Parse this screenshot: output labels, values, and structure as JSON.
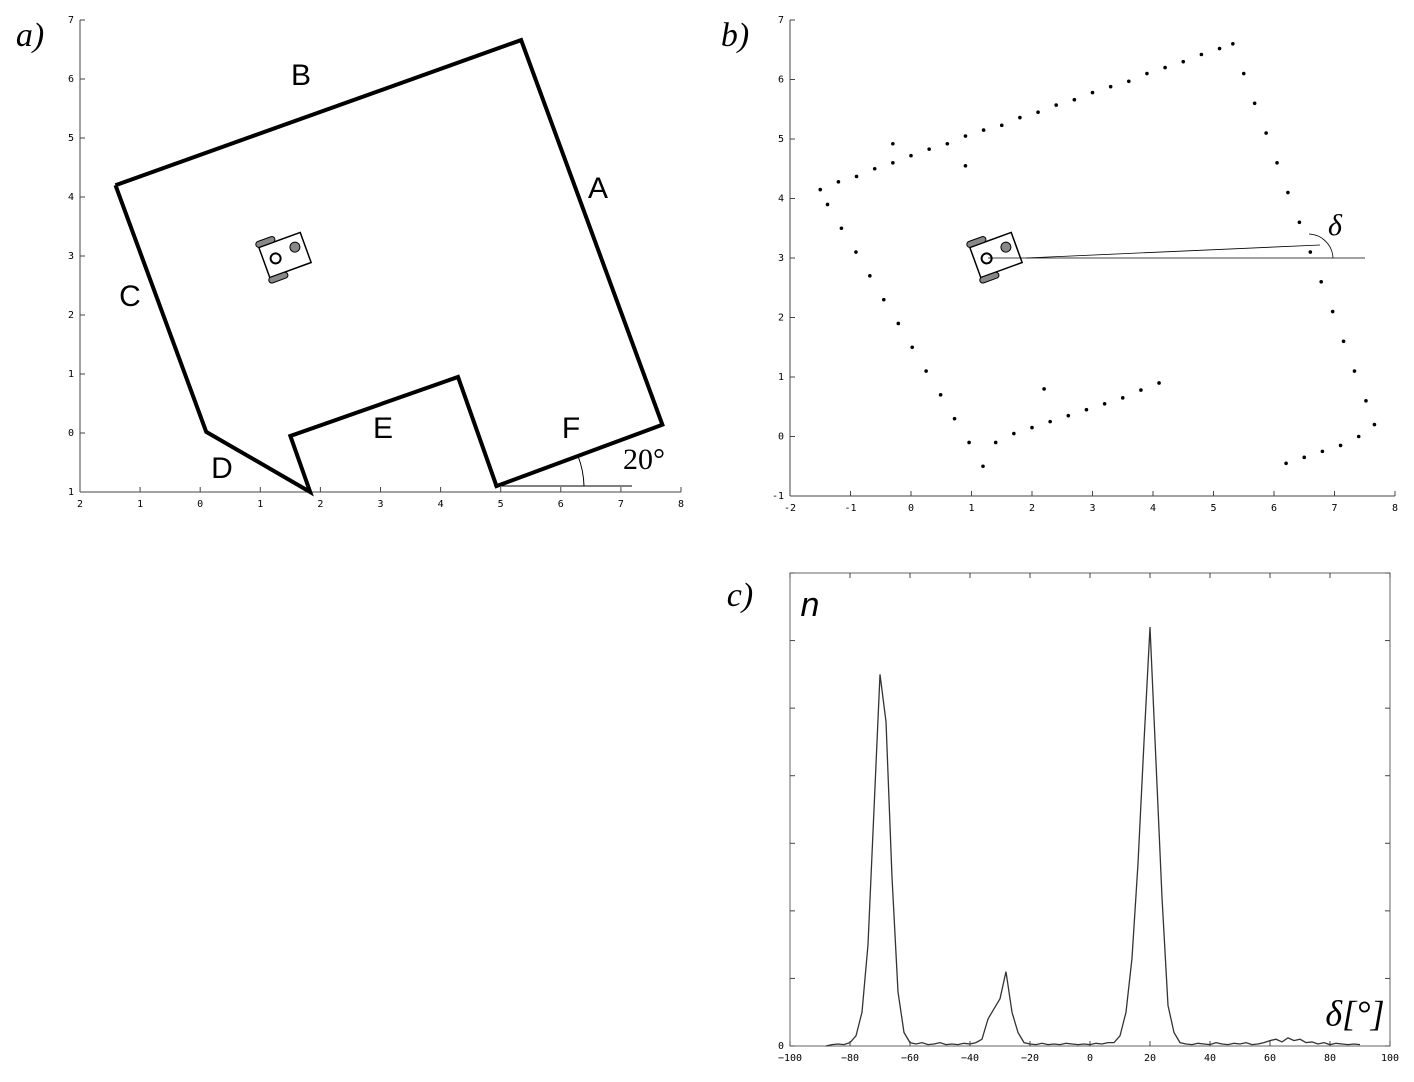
{
  "chart_data": [
    {
      "type": "line",
      "panel_label": "a)",
      "x": [
        -1.41,
        5.34,
        7.69,
        4.93,
        4.29,
        1.5,
        1.83,
        0.1,
        -1.41
      ],
      "y": [
        4.2,
        6.66,
        0.14,
        -0.9,
        0.95,
        -0.05,
        -1,
        0.02,
        4.2
      ],
      "color": "#000000",
      "xlim": [
        -2,
        8
      ],
      "ylim": [
        -1,
        7
      ],
      "xticks": [
        {
          "value": -2,
          "label": "2"
        },
        {
          "value": -1,
          "label": "1"
        },
        0,
        1,
        2,
        3,
        4,
        5,
        6,
        7,
        8
      ],
      "yticks": [
        {
          "value": -1,
          "label": "1"
        },
        0,
        1,
        2,
        3,
        4,
        5,
        6,
        7
      ],
      "annotations": [
        "A",
        "B",
        "C",
        "D",
        "E",
        "F",
        "20°"
      ]
    },
    {
      "type": "scatter",
      "panel_label": "b)",
      "x": [
        -1.5,
        -1.2,
        -0.9,
        -0.6,
        -0.3,
        0,
        0.3,
        0.6,
        0.9,
        1.2,
        1.5,
        1.8,
        2.1,
        2.4,
        2.7,
        3.0,
        3.3,
        3.6,
        3.9,
        4.2,
        4.5,
        4.8,
        5.1,
        5.32,
        5.5,
        5.68,
        5.87,
        6.05,
        6.23,
        6.42,
        6.6,
        6.78,
        6.97,
        7.15,
        7.33,
        7.52,
        7.66,
        6.2,
        6.5,
        6.8,
        7.1,
        7.4,
        -1.38,
        -1.15,
        -0.91,
        -0.68,
        -0.45,
        -0.21,
        0.02,
        0.25,
        0.49,
        0.72,
        0.96,
        1.19,
        1.4,
        1.7,
        2.0,
        2.3,
        2.6,
        2.9,
        3.2,
        3.5,
        3.8,
        4.1,
        -0.3,
        0.9,
        2.2
      ],
      "y": [
        4.15,
        4.28,
        4.37,
        4.5,
        4.6,
        4.72,
        4.83,
        4.92,
        5.05,
        5.15,
        5.23,
        5.36,
        5.45,
        5.57,
        5.66,
        5.78,
        5.88,
        5.97,
        6.1,
        6.2,
        6.3,
        6.42,
        6.52,
        6.6,
        6.1,
        5.6,
        5.1,
        4.6,
        4.1,
        3.6,
        3.1,
        2.6,
        2.1,
        1.6,
        1.1,
        0.6,
        0.2,
        -0.45,
        -0.35,
        -0.25,
        -0.15,
        0.0,
        3.9,
        3.5,
        3.1,
        2.7,
        2.3,
        1.9,
        1.5,
        1.1,
        0.7,
        0.3,
        -0.1,
        -0.5,
        -0.1,
        0.05,
        0.15,
        0.25,
        0.35,
        0.45,
        0.55,
        0.65,
        0.78,
        0.9,
        4.92,
        4.55,
        0.8
      ],
      "color": "#000000",
      "xlim": [
        -2,
        8
      ],
      "ylim": [
        -1,
        7
      ],
      "xticks": [
        -2,
        -1,
        0,
        1,
        2,
        3,
        4,
        5,
        6,
        7,
        8
      ],
      "yticks": [
        -1,
        0,
        1,
        2,
        3,
        4,
        5,
        6,
        7
      ],
      "annotations": [
        "δ"
      ]
    },
    {
      "type": "line",
      "panel_label": "c)",
      "x": [
        -88,
        -86,
        -84,
        -82,
        -80,
        -78,
        -76,
        -74,
        -72,
        -70,
        -68,
        -66,
        -64,
        -62,
        -60,
        -58,
        -56,
        -54,
        -52,
        -50,
        -48,
        -46,
        -44,
        -42,
        -40,
        -38,
        -36,
        -34,
        -32,
        -30,
        -28,
        -26,
        -24,
        -22,
        -20,
        -18,
        -16,
        -14,
        -12,
        -10,
        -8,
        -6,
        -4,
        -2,
        0,
        2,
        4,
        6,
        8,
        10,
        12,
        14,
        16,
        18,
        20,
        22,
        24,
        26,
        28,
        30,
        32,
        34,
        36,
        38,
        40,
        42,
        44,
        46,
        48,
        50,
        52,
        54,
        56,
        58,
        60,
        62,
        64,
        66,
        68,
        70,
        72,
        74,
        76,
        78,
        80,
        82,
        84,
        86,
        88,
        90
      ],
      "y": [
        0,
        0.02,
        0.03,
        0.02,
        0.05,
        0.15,
        0.5,
        1.5,
        3.5,
        5.5,
        4.8,
        2.5,
        0.8,
        0.2,
        0.05,
        0.03,
        0.05,
        0.02,
        0.03,
        0.05,
        0.02,
        0.03,
        0.02,
        0.04,
        0.03,
        0.05,
        0.1,
        0.4,
        0.55,
        0.7,
        1.1,
        0.5,
        0.2,
        0.05,
        0.03,
        0.02,
        0.04,
        0.02,
        0.03,
        0.02,
        0.04,
        0.03,
        0.02,
        0.03,
        0.02,
        0.04,
        0.03,
        0.05,
        0.05,
        0.15,
        0.5,
        1.3,
        2.7,
        4.5,
        6.2,
        4.2,
        2.2,
        0.6,
        0.2,
        0.05,
        0.03,
        0.02,
        0.04,
        0.03,
        0.02,
        0.05,
        0.03,
        0.02,
        0.04,
        0.03,
        0.05,
        0.02,
        0.03,
        0.05,
        0.08,
        0.1,
        0.06,
        0.12,
        0.08,
        0.1,
        0.05,
        0.06,
        0.03,
        0.05,
        0.02,
        0.04,
        0.03,
        0.02,
        0.03,
        0.02
      ],
      "color": "#333333",
      "xlim": [
        -100,
        100
      ],
      "ylim": [
        0,
        7
      ],
      "xticks": [
        {
          "value": -100,
          "label": "−100"
        },
        {
          "value": -80,
          "label": "−80"
        },
        {
          "value": -60,
          "label": "−60"
        },
        {
          "value": -40,
          "label": "−40"
        },
        {
          "value": -20,
          "label": "−20"
        },
        0,
        20,
        40,
        60,
        80,
        100
      ],
      "yticks": [
        0,
        {
          "value": 1,
          "label": null
        },
        {
          "value": 2,
          "label": null
        },
        {
          "value": 3,
          "label": null
        },
        {
          "value": 4,
          "label": null
        },
        {
          "value": 5,
          "label": null
        },
        {
          "value": 6,
          "label": null
        },
        {
          "value": 7,
          "label": null
        }
      ],
      "xlabel": "δ[°]",
      "ylabel": "n",
      "frame": true
    }
  ]
}
